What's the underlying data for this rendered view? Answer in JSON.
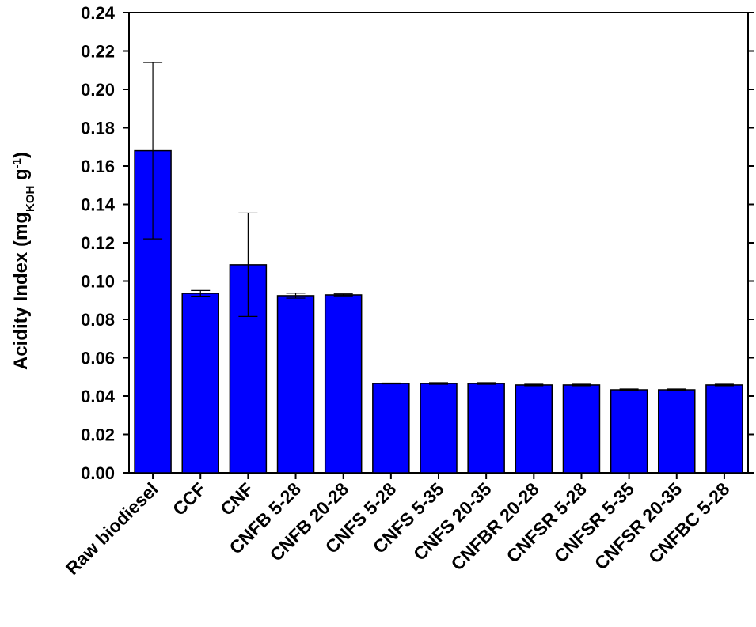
{
  "chart_data": {
    "type": "bar",
    "y_label": [
      {
        "text": "Acidity Index (mg"
      },
      {
        "text": "KOH",
        "shift": "sub"
      },
      {
        "text": " g"
      },
      {
        "text": "-1",
        "shift": "super"
      },
      {
        "text": ")"
      }
    ],
    "categories": [
      "Raw biodiesel",
      "CCF",
      "CNF",
      "CNFB 5-28",
      "CNFB 20-28",
      "CNFS 5-28",
      "CNFS 5-35",
      "CNFS 20-35",
      "CNFBR 20-28",
      "CNFSR 5-28",
      "CNFSR 5-35",
      "CNFSR 20-35",
      "CNFBC 5-28"
    ],
    "values": [
      0.168,
      0.0936,
      0.1085,
      0.0924,
      0.0928,
      0.0466,
      0.0466,
      0.0466,
      0.0458,
      0.0458,
      0.0433,
      0.0433,
      0.0458
    ],
    "errors": [
      0.046,
      0.0015,
      0.027,
      0.0013,
      0.0005,
      0.0002,
      0.0004,
      0.0004,
      0.0004,
      0.0004,
      0.0004,
      0.0004,
      0.0004
    ],
    "color": "#0000ff",
    "ylim": [
      0,
      0.24
    ],
    "yticks": [
      {
        "value": 0,
        "label": "0.00"
      },
      {
        "value": 0.02,
        "label": "0.02"
      },
      {
        "value": 0.04,
        "label": "0.04"
      },
      {
        "value": 0.06,
        "label": "0.06"
      },
      {
        "value": 0.08,
        "label": "0.08"
      },
      {
        "value": 0.1,
        "label": "0.10"
      },
      {
        "value": 0.12,
        "label": "0.12"
      },
      {
        "value": 0.14,
        "label": "0.14"
      },
      {
        "value": 0.16,
        "label": "0.16"
      },
      {
        "value": 0.18,
        "label": "0.18"
      },
      {
        "value": 0.2,
        "label": "0.20"
      },
      {
        "value": 0.22,
        "label": "0.22"
      },
      {
        "value": 0.24,
        "label": "0.24"
      }
    ]
  }
}
